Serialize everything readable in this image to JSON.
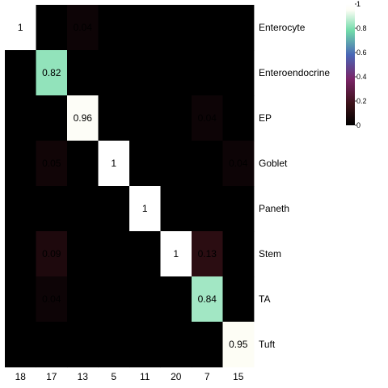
{
  "chart_data": {
    "type": "heatmap",
    "title": "",
    "xlabel": "",
    "ylabel": "",
    "columns": [
      "18",
      "17",
      "13",
      "5",
      "11",
      "20",
      "7",
      "15"
    ],
    "rows": [
      "Enterocyte",
      "Enteroendocrine",
      "EP",
      "Goblet",
      "Paneth",
      "Stem",
      "TA",
      "Tuft"
    ],
    "values": [
      [
        1,
        0,
        0.04,
        0,
        0,
        0,
        0,
        0
      ],
      [
        0,
        0.82,
        0,
        0,
        0,
        0,
        0,
        0
      ],
      [
        0,
        0,
        0.96,
        0,
        0,
        0,
        0.04,
        0
      ],
      [
        0,
        0.05,
        0,
        1,
        0,
        0,
        0,
        0.04
      ],
      [
        0,
        0,
        0,
        0,
        1,
        0,
        0,
        0
      ],
      [
        0,
        0.09,
        0,
        0,
        0,
        1,
        0.13,
        0
      ],
      [
        0,
        0.04,
        0,
        0,
        0,
        0,
        0.84,
        0
      ],
      [
        0,
        0,
        0,
        0,
        0,
        0,
        0,
        0.95
      ]
    ],
    "labels": [
      [
        "1",
        "",
        "0.04",
        "",
        "",
        "",
        "",
        ""
      ],
      [
        "",
        "0.82",
        "",
        "",
        "",
        "",
        "",
        ""
      ],
      [
        "",
        "",
        "0.96",
        "",
        "",
        "",
        "0.04",
        ""
      ],
      [
        "",
        "0.05",
        "",
        "1",
        "",
        "",
        "",
        "0.04"
      ],
      [
        "",
        "",
        "",
        "",
        "1",
        "",
        "",
        ""
      ],
      [
        "",
        "0.09",
        "",
        "",
        "",
        "1",
        "0.13",
        ""
      ],
      [
        "",
        "0.04",
        "",
        "",
        "",
        "",
        "0.84",
        ""
      ],
      [
        "",
        "",
        "",
        "",
        "",
        "",
        "",
        "0.95"
      ]
    ],
    "color_scale": {
      "range": [
        0,
        1
      ],
      "ticks": [
        "0",
        "0.2",
        "0.4",
        "0.6",
        "0.8",
        "1"
      ],
      "tick_values": [
        0,
        0.2,
        0.4,
        0.6,
        0.8,
        1
      ],
      "colormap": "cubehelix",
      "stops": [
        "#000000",
        "#3c1219",
        "#7a2466",
        "#4a66b6",
        "#71dba9",
        "#fdfdf5",
        "#ffffff"
      ]
    },
    "grid": false,
    "legend": "top-right"
  }
}
